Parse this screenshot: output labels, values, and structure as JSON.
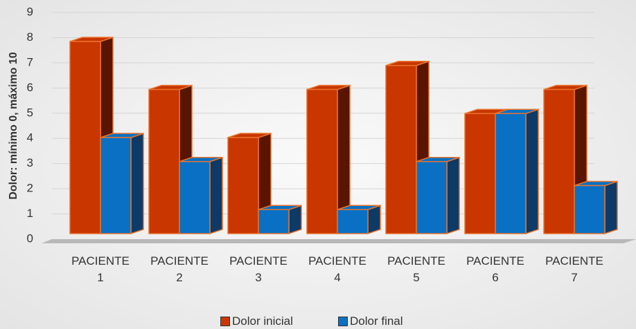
{
  "chart_data": {
    "type": "bar",
    "ylabel": "Dolor: mínimo 0, máximo 10",
    "categories": [
      "PACIENTE 1",
      "PACIENTE 2",
      "PACIENTE 3",
      "PACIENTE 4",
      "PACIENTE 5",
      "PACIENTE 6",
      "PACIENTE 7"
    ],
    "series": [
      {
        "name": "Dolor inicial",
        "color": "#c93600",
        "values": [
          8,
          6,
          4,
          6,
          7,
          5,
          6
        ]
      },
      {
        "name": "Dolor final",
        "color": "#0a70c4",
        "values": [
          4,
          3,
          1,
          1,
          3,
          5,
          2
        ]
      }
    ],
    "ylim": [
      0,
      9
    ],
    "yticks": [
      0,
      1,
      2,
      3,
      4,
      5,
      6,
      7,
      8,
      9
    ],
    "grid": true,
    "legend": "bottom"
  }
}
